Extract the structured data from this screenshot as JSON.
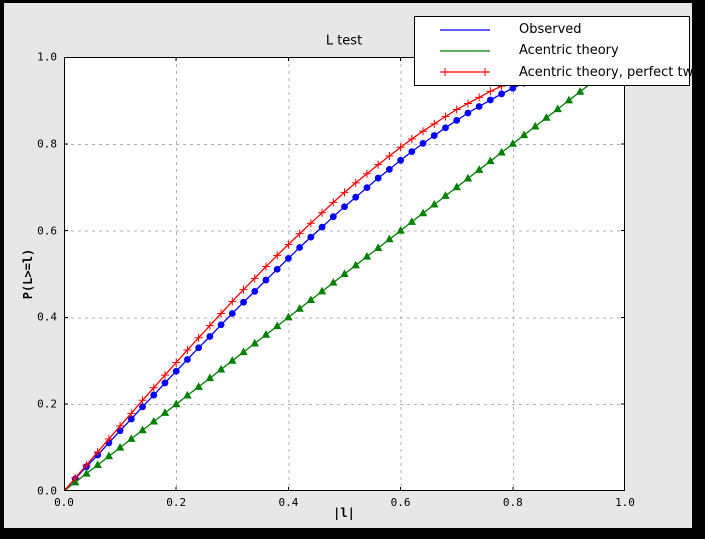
{
  "colors": {
    "frame": "#000000",
    "figure_bg": "#e7e7e7",
    "axes_bg": "#ffffff",
    "grid": "#b0b0b0",
    "text": "#000000"
  },
  "chart_data": {
    "type": "line",
    "title": "L test",
    "xlabel": "|l|",
    "ylabel": "P(L>=l)",
    "xlim": [
      0.0,
      1.0
    ],
    "ylim": [
      0.0,
      1.0
    ],
    "xticks": [
      0.0,
      0.2,
      0.4,
      0.6,
      0.8,
      1.0
    ],
    "yticks": [
      0.0,
      0.2,
      0.4,
      0.6,
      0.8,
      1.0
    ],
    "grid": true,
    "grid_style": "dashed",
    "legend_position": "upper right",
    "series": [
      {
        "name": "Observed",
        "color": "#0000ff",
        "marker": "circle",
        "x": [
          0.0,
          0.02,
          0.04,
          0.06,
          0.08,
          0.1,
          0.12,
          0.14,
          0.16,
          0.18,
          0.2,
          0.22,
          0.24,
          0.26,
          0.28,
          0.3,
          0.32,
          0.34,
          0.36,
          0.38,
          0.4,
          0.42,
          0.44,
          0.46,
          0.48,
          0.5,
          0.52,
          0.54,
          0.56,
          0.58,
          0.6,
          0.62,
          0.64,
          0.66,
          0.68,
          0.7,
          0.72,
          0.74,
          0.76,
          0.78,
          0.8,
          0.82,
          0.84,
          0.86
        ],
        "y": [
          0.0,
          0.028,
          0.056,
          0.083,
          0.111,
          0.139,
          0.166,
          0.194,
          0.221,
          0.249,
          0.276,
          0.303,
          0.33,
          0.356,
          0.383,
          0.409,
          0.435,
          0.46,
          0.486,
          0.511,
          0.536,
          0.561,
          0.585,
          0.608,
          0.632,
          0.655,
          0.677,
          0.699,
          0.721,
          0.741,
          0.762,
          0.782,
          0.801,
          0.819,
          0.837,
          0.854,
          0.871,
          0.886,
          0.901,
          0.915,
          0.928,
          0.94,
          0.952,
          0.962
        ]
      },
      {
        "name": "Acentric theory",
        "color": "#008000",
        "marker": "triangle",
        "x": [
          0.0,
          0.02,
          0.04,
          0.06,
          0.08,
          0.1,
          0.12,
          0.14,
          0.16,
          0.18,
          0.2,
          0.22,
          0.24,
          0.26,
          0.28,
          0.3,
          0.32,
          0.34,
          0.36,
          0.38,
          0.4,
          0.42,
          0.44,
          0.46,
          0.48,
          0.5,
          0.52,
          0.54,
          0.56,
          0.58,
          0.6,
          0.62,
          0.64,
          0.66,
          0.68,
          0.7,
          0.72,
          0.74,
          0.76,
          0.78,
          0.8,
          0.82,
          0.84,
          0.86,
          0.88,
          0.9,
          0.92,
          0.94,
          0.96
        ],
        "y": [
          0.0,
          0.02,
          0.04,
          0.06,
          0.08,
          0.1,
          0.12,
          0.14,
          0.16,
          0.18,
          0.2,
          0.22,
          0.24,
          0.26,
          0.28,
          0.3,
          0.32,
          0.34,
          0.36,
          0.38,
          0.4,
          0.42,
          0.44,
          0.46,
          0.48,
          0.5,
          0.52,
          0.54,
          0.56,
          0.58,
          0.6,
          0.62,
          0.64,
          0.66,
          0.68,
          0.7,
          0.72,
          0.74,
          0.76,
          0.78,
          0.8,
          0.82,
          0.84,
          0.86,
          0.88,
          0.9,
          0.92,
          0.94,
          0.96
        ]
      },
      {
        "name": "Acentric theory, perfect twin",
        "color": "#ff0000",
        "marker": "plus",
        "x": [
          0.0,
          0.02,
          0.04,
          0.06,
          0.08,
          0.1,
          0.12,
          0.14,
          0.16,
          0.18,
          0.2,
          0.22,
          0.24,
          0.26,
          0.28,
          0.3,
          0.32,
          0.34,
          0.36,
          0.38,
          0.4,
          0.42,
          0.44,
          0.46,
          0.48,
          0.5,
          0.52,
          0.54,
          0.56,
          0.58,
          0.6,
          0.62,
          0.64,
          0.66,
          0.68,
          0.7,
          0.72,
          0.74,
          0.76,
          0.78,
          0.8,
          0.82,
          0.84
        ],
        "y": [
          0.0,
          0.03,
          0.06,
          0.09,
          0.12,
          0.15,
          0.179,
          0.209,
          0.238,
          0.267,
          0.296,
          0.325,
          0.353,
          0.381,
          0.409,
          0.437,
          0.464,
          0.49,
          0.517,
          0.543,
          0.568,
          0.593,
          0.617,
          0.641,
          0.665,
          0.688,
          0.71,
          0.731,
          0.752,
          0.772,
          0.792,
          0.811,
          0.829,
          0.846,
          0.863,
          0.879,
          0.893,
          0.907,
          0.921,
          0.933,
          0.944,
          0.954,
          0.964
        ]
      }
    ]
  },
  "legend": {
    "items": [
      "Observed",
      "Acentric theory",
      "Acentric theory, perfect twin"
    ]
  }
}
